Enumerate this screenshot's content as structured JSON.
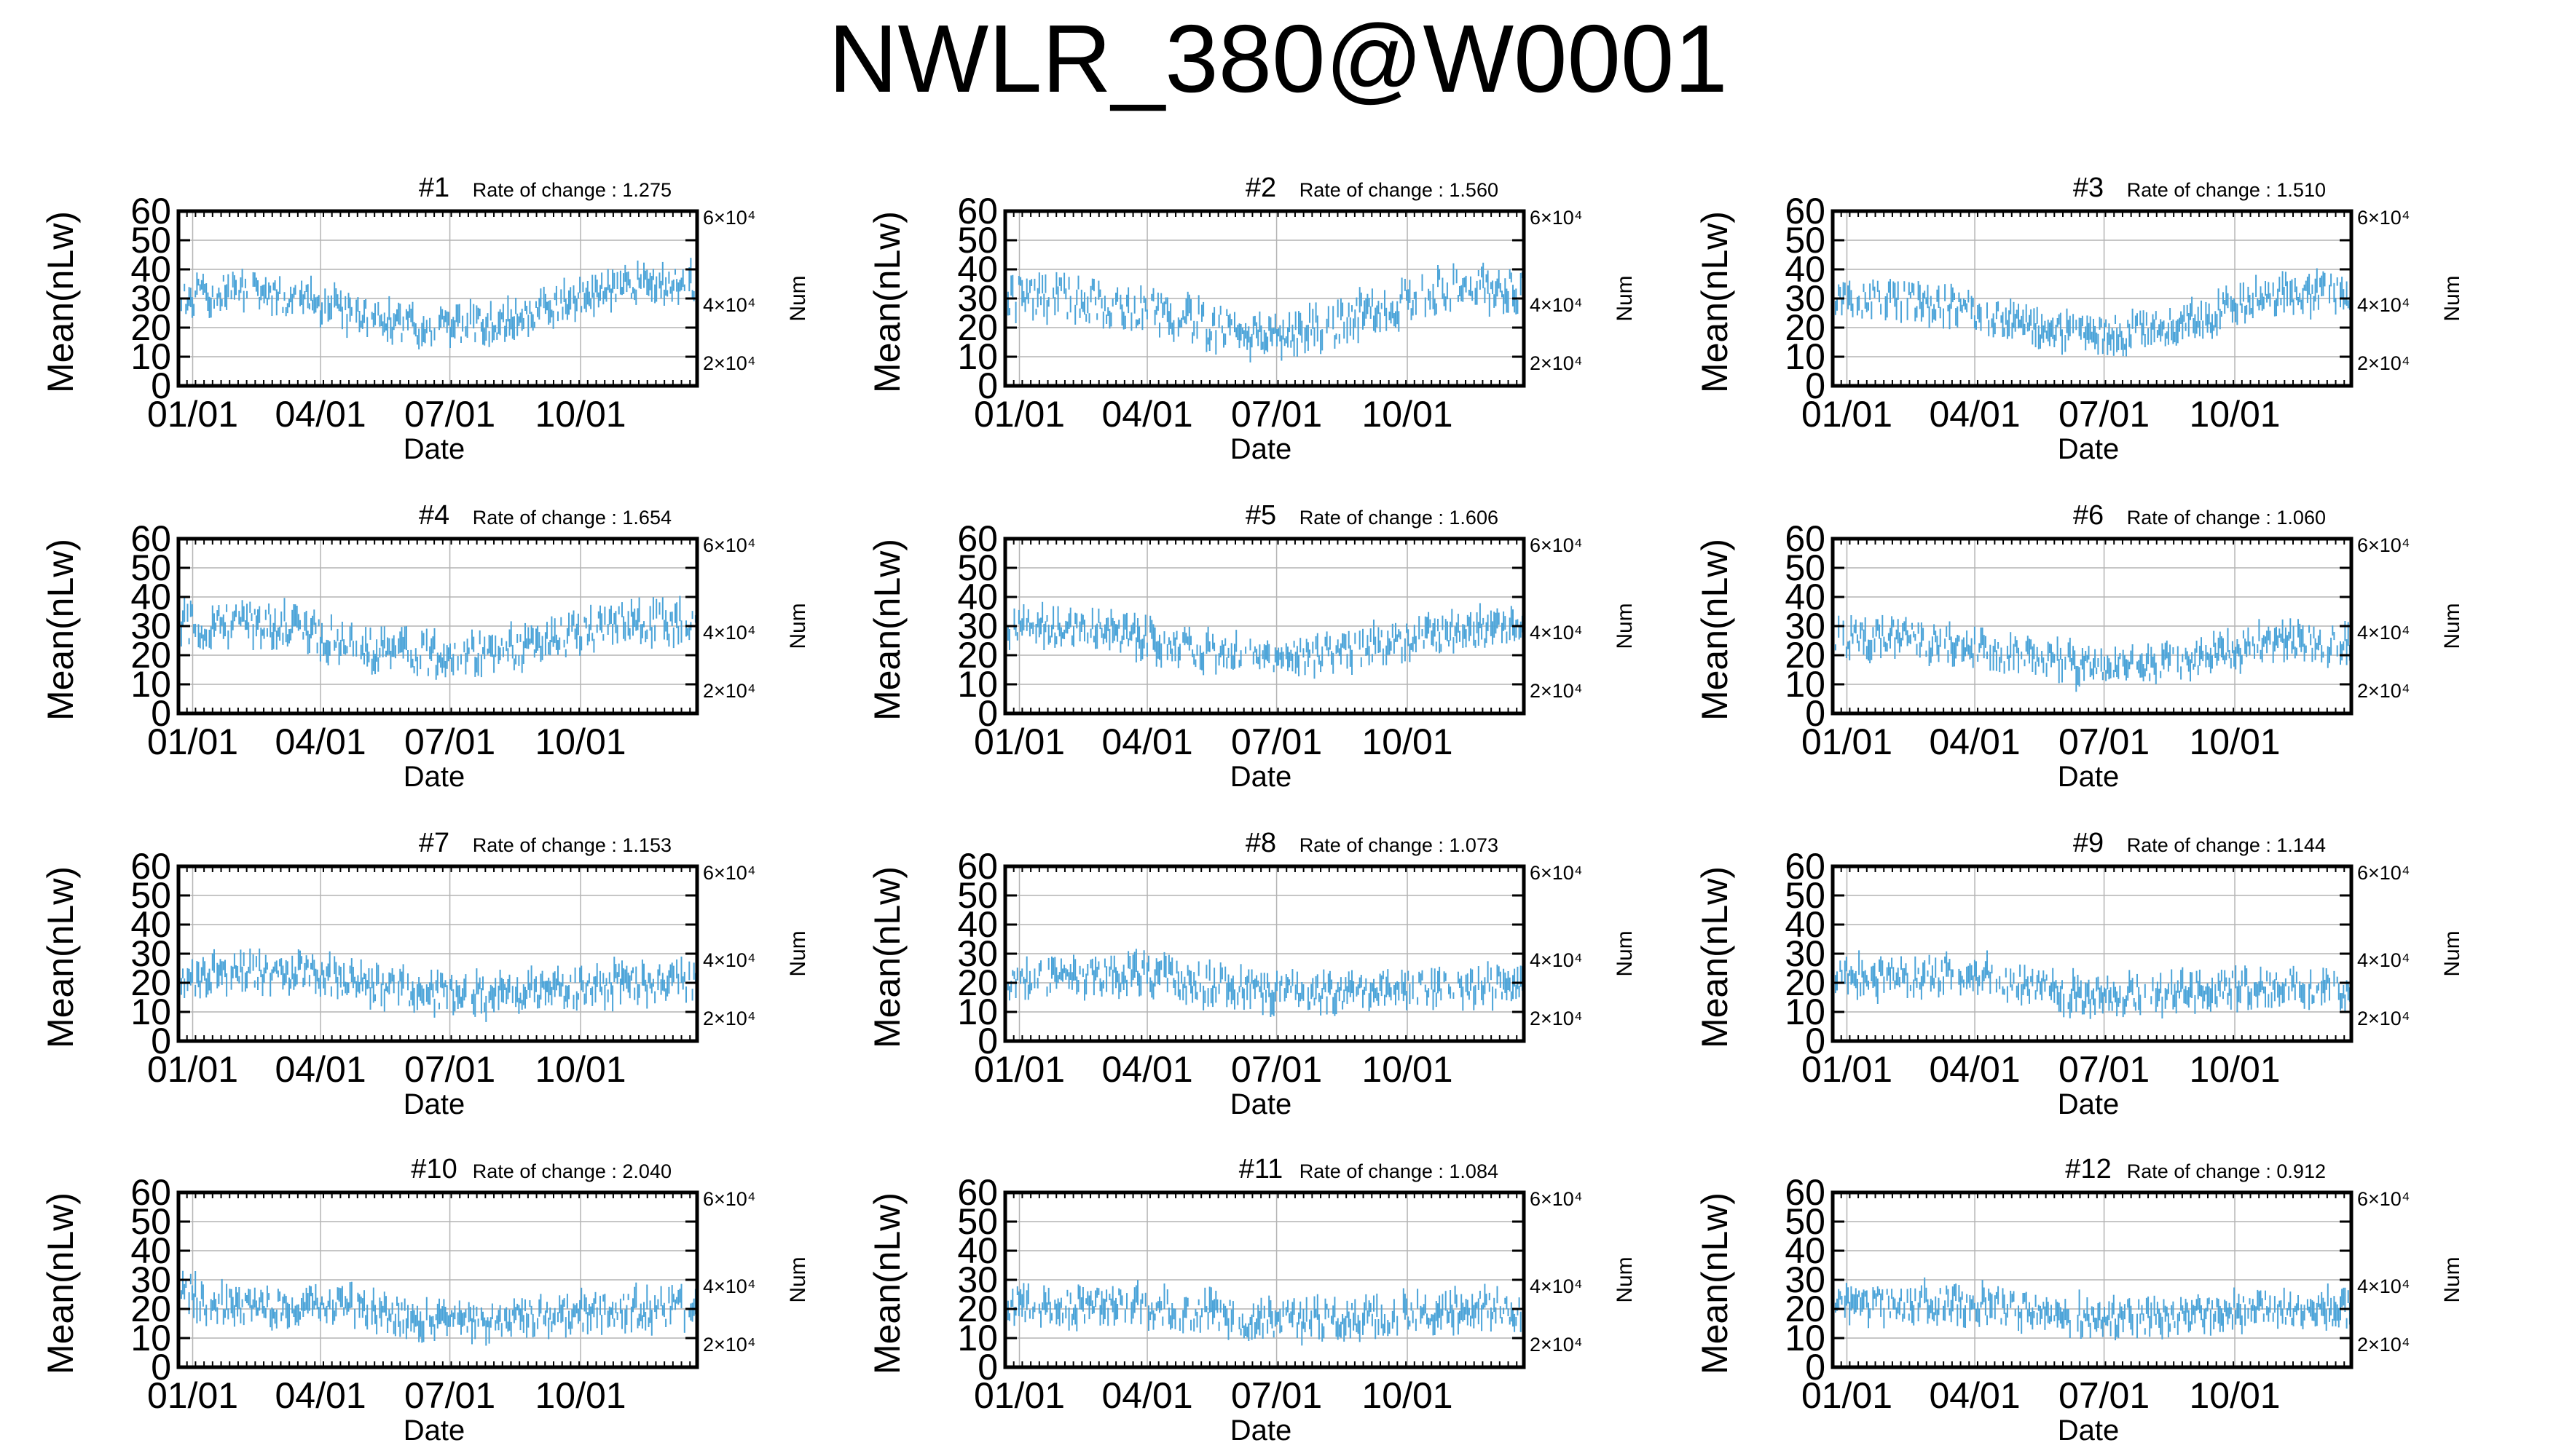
{
  "figure": {
    "title": "NWLR_380@W0001",
    "colors": {
      "series": "#4aa3d8",
      "axis": "#000000",
      "grid": "#b4b4b4",
      "background": "#ffffff"
    }
  },
  "chart_data": [
    {
      "type": "scatter",
      "title": "#1",
      "annotation": "Rate of change : 1.275",
      "xlabel": "Date",
      "ylabel": "Mean(nLw)",
      "y2label": "Num",
      "xticks": [
        "01/01",
        "04/01",
        "07/01",
        "10/01"
      ],
      "yticks": [
        0,
        10,
        20,
        30,
        40,
        50,
        60
      ],
      "y2ticks": [
        "2×10⁴",
        "4×10⁴",
        "6×10⁴"
      ],
      "ylim": [
        0,
        60
      ],
      "grid": true,
      "series": [
        {
          "profile": [
            [
              0,
              30
            ],
            [
              45,
              33
            ],
            [
              90,
              29
            ],
            [
              135,
              23
            ],
            [
              180,
              20
            ],
            [
              225,
              21
            ],
            [
              270,
              28
            ],
            [
              315,
              35
            ],
            [
              365,
              35
            ]
          ],
          "spread": 5,
          "seed": 11
        }
      ]
    },
    {
      "type": "scatter",
      "title": "#2",
      "annotation": "Rate of change : 1.560",
      "xlabel": "Date",
      "ylabel": "Mean(nLw)",
      "y2label": "Num",
      "xticks": [
        "01/01",
        "04/01",
        "07/01",
        "10/01"
      ],
      "yticks": [
        0,
        10,
        20,
        30,
        40,
        50,
        60
      ],
      "y2ticks": [
        "2×10⁴",
        "4×10⁴",
        "6×10⁴"
      ],
      "ylim": [
        0,
        60
      ],
      "grid": true,
      "series": [
        {
          "profile": [
            [
              0,
              31
            ],
            [
              45,
              30
            ],
            [
              90,
              27
            ],
            [
              135,
              22
            ],
            [
              180,
              17
            ],
            [
              225,
              20
            ],
            [
              270,
              27
            ],
            [
              315,
              34
            ],
            [
              365,
              33
            ]
          ],
          "spread": 6,
          "seed": 22
        }
      ]
    },
    {
      "type": "scatter",
      "title": "#3",
      "annotation": "Rate of change : 1.510",
      "xlabel": "Date",
      "ylabel": "Mean(nLw)",
      "y2label": "Num",
      "xticks": [
        "01/01",
        "04/01",
        "07/01",
        "10/01"
      ],
      "yticks": [
        0,
        10,
        20,
        30,
        40,
        50,
        60
      ],
      "y2ticks": [
        "2×10⁴",
        "4×10⁴",
        "6×10⁴"
      ],
      "ylim": [
        0,
        60
      ],
      "grid": true,
      "series": [
        {
          "profile": [
            [
              0,
              29
            ],
            [
              45,
              30
            ],
            [
              90,
              27
            ],
            [
              135,
              21
            ],
            [
              180,
              17
            ],
            [
              225,
              19
            ],
            [
              270,
              25
            ],
            [
              315,
              32
            ],
            [
              365,
              32
            ]
          ],
          "spread": 5,
          "seed": 33
        }
      ]
    },
    {
      "type": "scatter",
      "title": "#4",
      "annotation": "Rate of change : 1.654",
      "xlabel": "Date",
      "ylabel": "Mean(nLw)",
      "y2label": "Num",
      "xticks": [
        "01/01",
        "04/01",
        "07/01",
        "10/01"
      ],
      "yticks": [
        0,
        10,
        20,
        30,
        40,
        50,
        60
      ],
      "y2ticks": [
        "2×10⁴",
        "4×10⁴",
        "6×10⁴"
      ],
      "ylim": [
        0,
        60
      ],
      "grid": true,
      "series": [
        {
          "profile": [
            [
              0,
              30
            ],
            [
              45,
              31
            ],
            [
              90,
              29
            ],
            [
              135,
              22
            ],
            [
              180,
              20
            ],
            [
              225,
              21
            ],
            [
              270,
              26
            ],
            [
              315,
              31
            ],
            [
              365,
              31
            ]
          ],
          "spread": 6,
          "seed": 44
        }
      ]
    },
    {
      "type": "scatter",
      "title": "#5",
      "annotation": "Rate of change : 1.606",
      "xlabel": "Date",
      "ylabel": "Mean(nLw)",
      "y2label": "Num",
      "xticks": [
        "01/01",
        "04/01",
        "07/01",
        "10/01"
      ],
      "yticks": [
        0,
        10,
        20,
        30,
        40,
        50,
        60
      ],
      "y2ticks": [
        "2×10⁴",
        "4×10⁴",
        "6×10⁴"
      ],
      "ylim": [
        0,
        60
      ],
      "grid": true,
      "series": [
        {
          "profile": [
            [
              0,
              30
            ],
            [
              45,
              30
            ],
            [
              90,
              27
            ],
            [
              135,
              22
            ],
            [
              180,
              20
            ],
            [
              225,
              20
            ],
            [
              270,
              24
            ],
            [
              315,
              28
            ],
            [
              365,
              30
            ]
          ],
          "spread": 5,
          "seed": 55
        }
      ]
    },
    {
      "type": "scatter",
      "title": "#6",
      "annotation": "Rate of change : 1.060",
      "xlabel": "Date",
      "ylabel": "Mean(nLw)",
      "y2label": "Num",
      "xticks": [
        "01/01",
        "04/01",
        "07/01",
        "10/01"
      ],
      "yticks": [
        0,
        10,
        20,
        30,
        40,
        50,
        60
      ],
      "y2ticks": [
        "2×10⁴",
        "4×10⁴",
        "6×10⁴"
      ],
      "ylim": [
        0,
        60
      ],
      "grid": true,
      "series": [
        {
          "profile": [
            [
              0,
              25
            ],
            [
              45,
              26
            ],
            [
              90,
              24
            ],
            [
              135,
              19
            ],
            [
              180,
              16
            ],
            [
              225,
              17
            ],
            [
              270,
              21
            ],
            [
              315,
              25
            ],
            [
              365,
              24
            ]
          ],
          "spread": 5,
          "seed": 66
        }
      ]
    },
    {
      "type": "scatter",
      "title": "#7",
      "annotation": "Rate of change : 1.153",
      "xlabel": "Date",
      "ylabel": "Mean(nLw)",
      "y2label": "Num",
      "xticks": [
        "01/01",
        "04/01",
        "07/01",
        "10/01"
      ],
      "yticks": [
        0,
        10,
        20,
        30,
        40,
        50,
        60
      ],
      "y2ticks": [
        "2×10⁴",
        "4×10⁴",
        "6×10⁴"
      ],
      "ylim": [
        0,
        60
      ],
      "grid": true,
      "series": [
        {
          "profile": [
            [
              0,
              21
            ],
            [
              45,
              24
            ],
            [
              90,
              23
            ],
            [
              135,
              19
            ],
            [
              180,
              16
            ],
            [
              225,
              16
            ],
            [
              270,
              18
            ],
            [
              315,
              20
            ],
            [
              365,
              20
            ]
          ],
          "spread": 5,
          "seed": 77
        }
      ]
    },
    {
      "type": "scatter",
      "title": "#8",
      "annotation": "Rate of change : 1.073",
      "xlabel": "Date",
      "ylabel": "Mean(nLw)",
      "y2label": "Num",
      "xticks": [
        "01/01",
        "04/01",
        "07/01",
        "10/01"
      ],
      "yticks": [
        0,
        10,
        20,
        30,
        40,
        50,
        60
      ],
      "y2ticks": [
        "2×10⁴",
        "4×10⁴",
        "6×10⁴"
      ],
      "ylim": [
        0,
        60
      ],
      "grid": true,
      "series": [
        {
          "profile": [
            [
              0,
              21
            ],
            [
              45,
              22
            ],
            [
              90,
              23
            ],
            [
              135,
              20
            ],
            [
              180,
              17
            ],
            [
              225,
              17
            ],
            [
              270,
              18
            ],
            [
              315,
              19
            ],
            [
              365,
              19
            ]
          ],
          "spread": 5,
          "seed": 88
        }
      ]
    },
    {
      "type": "scatter",
      "title": "#9",
      "annotation": "Rate of change : 1.144",
      "xlabel": "Date",
      "ylabel": "Mean(nLw)",
      "y2label": "Num",
      "xticks": [
        "01/01",
        "04/01",
        "07/01",
        "10/01"
      ],
      "yticks": [
        0,
        10,
        20,
        30,
        40,
        50,
        60
      ],
      "y2ticks": [
        "2×10⁴",
        "4×10⁴",
        "6×10⁴"
      ],
      "ylim": [
        0,
        60
      ],
      "grid": true,
      "series": [
        {
          "profile": [
            [
              0,
              22
            ],
            [
              45,
              22
            ],
            [
              90,
              24
            ],
            [
              135,
              19
            ],
            [
              180,
              16
            ],
            [
              225,
              16
            ],
            [
              270,
              18
            ],
            [
              315,
              19
            ],
            [
              365,
              18
            ]
          ],
          "spread": 5,
          "seed": 99
        }
      ]
    },
    {
      "type": "scatter",
      "title": "#10",
      "annotation": "Rate of change : 2.040",
      "xlabel": "Date",
      "ylabel": "Mean(nLw)",
      "y2label": "Num",
      "xticks": [
        "01/01",
        "04/01",
        "07/01",
        "10/01"
      ],
      "yticks": [
        0,
        10,
        20,
        30,
        40,
        50,
        60
      ],
      "y2ticks": [
        "2×10⁴",
        "4×10⁴",
        "6×10⁴"
      ],
      "ylim": [
        0,
        60
      ],
      "grid": true,
      "series": [
        {
          "profile": [
            [
              0,
              28
            ],
            [
              20,
              22
            ],
            [
              45,
              21
            ],
            [
              90,
              22
            ],
            [
              135,
              19
            ],
            [
              180,
              16
            ],
            [
              225,
              16
            ],
            [
              270,
              18
            ],
            [
              315,
              20
            ],
            [
              365,
              20
            ]
          ],
          "spread": 5,
          "seed": 110
        }
      ]
    },
    {
      "type": "scatter",
      "title": "#11",
      "annotation": "Rate of change : 1.084",
      "xlabel": "Date",
      "ylabel": "Mean(nLw)",
      "y2label": "Num",
      "xticks": [
        "01/01",
        "04/01",
        "07/01",
        "10/01"
      ],
      "yticks": [
        0,
        10,
        20,
        30,
        40,
        50,
        60
      ],
      "y2ticks": [
        "2×10⁴",
        "4×10⁴",
        "6×10⁴"
      ],
      "ylim": [
        0,
        60
      ],
      "grid": true,
      "series": [
        {
          "profile": [
            [
              0,
              22
            ],
            [
              45,
              21
            ],
            [
              90,
              21
            ],
            [
              135,
              19
            ],
            [
              180,
              16
            ],
            [
              225,
              16
            ],
            [
              270,
              18
            ],
            [
              315,
              20
            ],
            [
              365,
              20
            ]
          ],
          "spread": 5,
          "seed": 121
        }
      ]
    },
    {
      "type": "scatter",
      "title": "#12",
      "annotation": "Rate of change : 0.912",
      "xlabel": "Date",
      "ylabel": "Mean(nLw)",
      "y2label": "Num",
      "xticks": [
        "01/01",
        "04/01",
        "07/01",
        "10/01"
      ],
      "yticks": [
        0,
        10,
        20,
        30,
        40,
        50,
        60
      ],
      "y2ticks": [
        "2×10⁴",
        "4×10⁴",
        "6×10⁴"
      ],
      "ylim": [
        0,
        60
      ],
      "grid": true,
      "series": [
        {
          "profile": [
            [
              0,
              23
            ],
            [
              45,
              21
            ],
            [
              90,
              22
            ],
            [
              135,
              19
            ],
            [
              180,
              17
            ],
            [
              225,
              17
            ],
            [
              270,
              19
            ],
            [
              315,
              20
            ],
            [
              365,
              20
            ]
          ],
          "spread": 5,
          "seed": 132
        }
      ]
    }
  ]
}
